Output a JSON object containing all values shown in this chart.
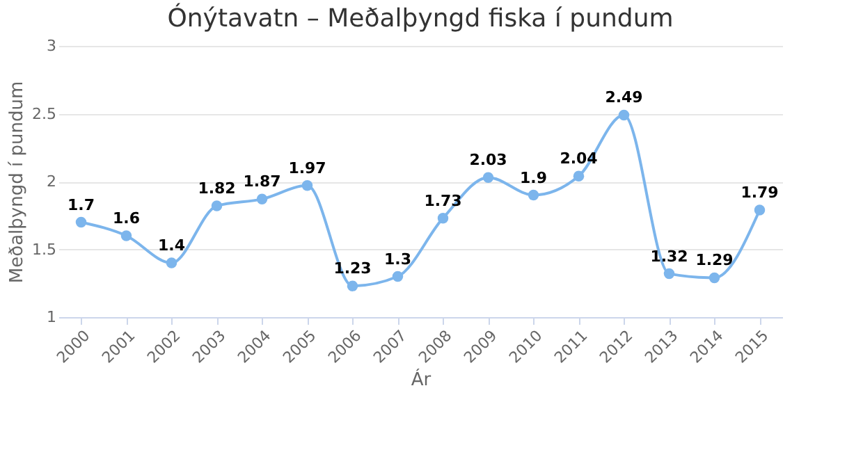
{
  "chart_data": {
    "type": "line",
    "title": "Ónýtavatn – Meðalþyngd fiska í pundum",
    "xlabel": "Ár",
    "ylabel": "Meðalþyngd í pundum",
    "categories": [
      "2000",
      "2001",
      "2002",
      "2003",
      "2004",
      "2005",
      "2006",
      "2007",
      "2008",
      "2009",
      "2010",
      "2011",
      "2012",
      "2013",
      "2014",
      "2015"
    ],
    "series": [
      {
        "color": "#7cb5ec",
        "values": [
          1.7,
          1.6,
          1.4,
          1.82,
          1.87,
          1.97,
          1.23,
          1.3,
          1.73,
          2.03,
          1.9,
          2.04,
          2.49,
          1.32,
          1.29,
          1.79
        ]
      }
    ],
    "ylim": [
      1,
      3
    ],
    "yticks": [
      1,
      1.5,
      2,
      2.5,
      3
    ],
    "grid": "y",
    "marker": "circle",
    "data_labels": true
  }
}
